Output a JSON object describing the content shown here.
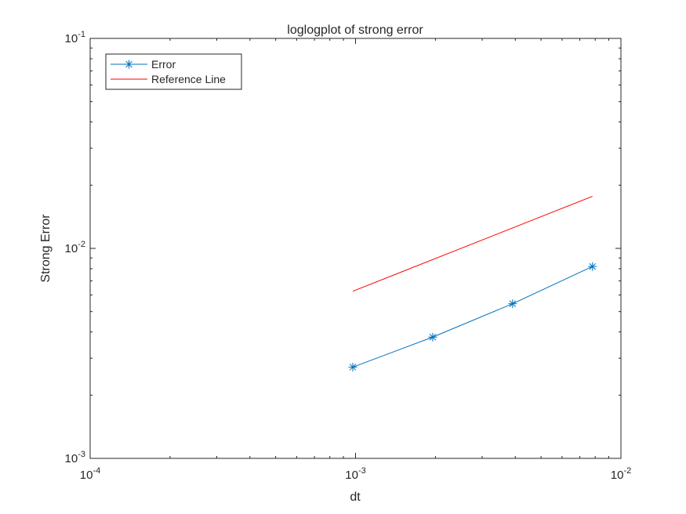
{
  "chart_data": {
    "type": "line",
    "title": "loglogplot of strong error",
    "xlabel": "dt",
    "ylabel": "Strong Error",
    "xscale": "log",
    "yscale": "log",
    "xlim": [
      0.0001,
      0.01
    ],
    "ylim": [
      0.001,
      0.1
    ],
    "grid": false,
    "legend_position": "top-left",
    "x_ticks": [
      {
        "value": 0.0001,
        "base": "10",
        "exp": "-4"
      },
      {
        "value": 0.001,
        "base": "10",
        "exp": "-3"
      },
      {
        "value": 0.01,
        "base": "10",
        "exp": "-2"
      }
    ],
    "y_ticks": [
      {
        "value": 0.001,
        "base": "10",
        "exp": "-3"
      },
      {
        "value": 0.01,
        "base": "10",
        "exp": "-2"
      },
      {
        "value": 0.1,
        "base": "10",
        "exp": "-1"
      }
    ],
    "series": [
      {
        "name": "Error",
        "color": "#0072bd",
        "marker": "asterisk",
        "x": [
          0.0009765625,
          0.001953125,
          0.00390625,
          0.0078125
        ],
        "y": [
          0.00272,
          0.00378,
          0.00545,
          0.0082
        ]
      },
      {
        "name": "Reference Line",
        "color": "#ff0000",
        "marker": "none",
        "x": [
          0.0009765625,
          0.0078125
        ],
        "y": [
          0.00625,
          0.0177
        ]
      }
    ]
  }
}
